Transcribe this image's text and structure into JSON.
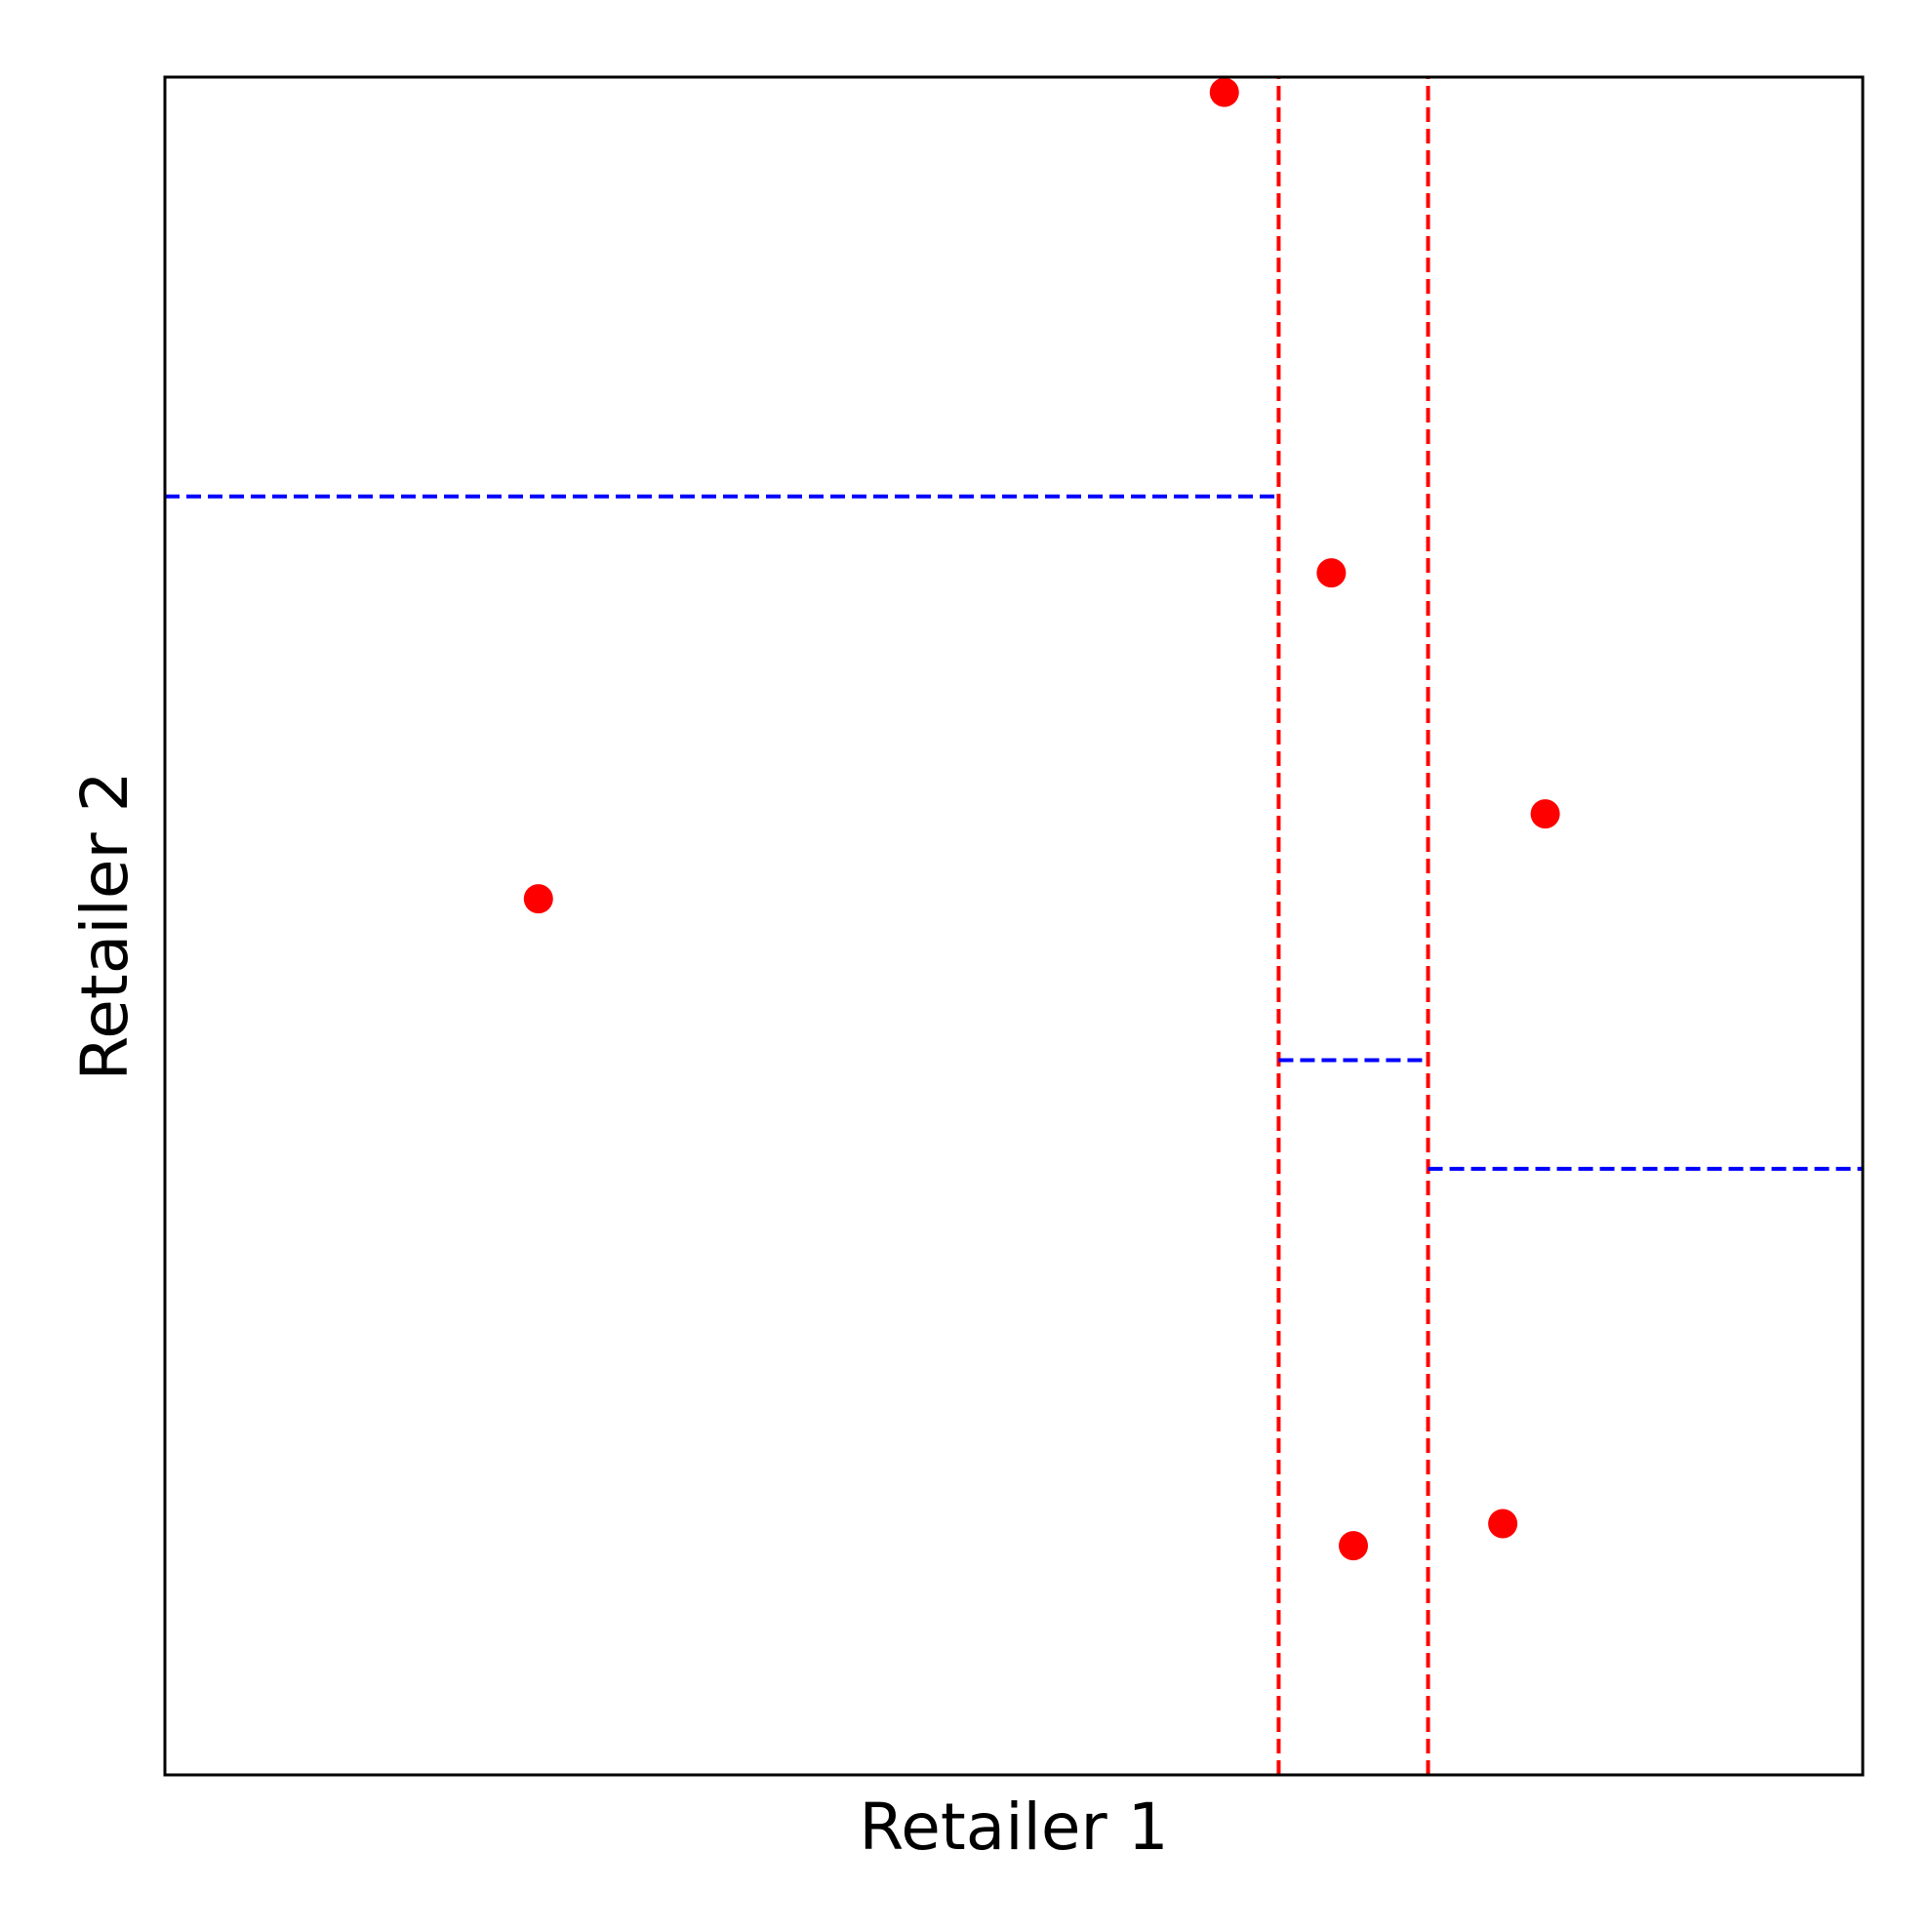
{
  "chart_data": {
    "type": "scatter",
    "title": "",
    "xlabel": "Retailer 1",
    "ylabel": "Retailer 2",
    "xlim": [
      0,
      1
    ],
    "ylim": [
      0,
      1
    ],
    "xticks": false,
    "yticks": false,
    "grid": false,
    "points": [
      {
        "x": 0.624,
        "y": 0.991
      },
      {
        "x": 0.22,
        "y": 0.516
      },
      {
        "x": 0.687,
        "y": 0.708
      },
      {
        "x": 0.813,
        "y": 0.566
      },
      {
        "x": 0.7,
        "y": 0.135
      },
      {
        "x": 0.788,
        "y": 0.148
      }
    ],
    "point_color": "#ff0000",
    "vertical_boundaries": [
      {
        "x": 0.656,
        "y_from": 0,
        "y_to": 1,
        "color": "#ff0000",
        "style": "dashed"
      },
      {
        "x": 0.744,
        "y_from": 0,
        "y_to": 1,
        "color": "#ff0000",
        "style": "dashed"
      }
    ],
    "horizontal_boundaries": [
      {
        "y": 0.753,
        "x_from": 0,
        "x_to": 0.656,
        "color": "#0000ff",
        "style": "dashed"
      },
      {
        "y": 0.421,
        "x_from": 0.656,
        "x_to": 0.744,
        "color": "#0000ff",
        "style": "dashed"
      },
      {
        "y": 0.357,
        "x_from": 0.744,
        "x_to": 1,
        "color": "#0000ff",
        "style": "dashed"
      }
    ]
  }
}
